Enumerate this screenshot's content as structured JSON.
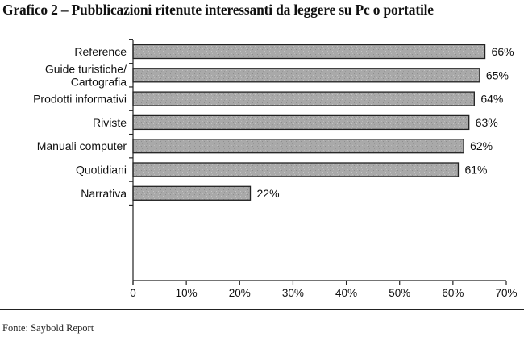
{
  "title": "Grafico 2 – Pubblicazioni ritenute interessanti da leggere su Pc o portatile",
  "source": "Fonte: Saybold Report",
  "colors": {
    "bar_fill": "#a9a9a9",
    "bar_stroke": "#222222",
    "axis": "#222222",
    "text": "#111111"
  },
  "chart_data": {
    "type": "bar",
    "orientation": "horizontal",
    "title": "Grafico 2 – Pubblicazioni ritenute interessanti da leggere su Pc o portatile",
    "categories": [
      [
        "Reference"
      ],
      [
        "Guide turistiche/",
        "Cartografia"
      ],
      [
        "Prodotti informativi"
      ],
      [
        "Riviste"
      ],
      [
        "Manuali computer"
      ],
      [
        "Quotidiani"
      ],
      [
        "Narrativa"
      ]
    ],
    "values": [
      66,
      65,
      64,
      63,
      62,
      61,
      22
    ],
    "value_labels": [
      "66%",
      "65%",
      "64%",
      "63%",
      "62%",
      "61%",
      "22%"
    ],
    "xlim": [
      0,
      70
    ],
    "xticks": [
      0,
      10,
      20,
      30,
      40,
      50,
      60,
      70
    ],
    "xtick_labels": [
      "0",
      "10%",
      "20%",
      "30%",
      "40%",
      "50%",
      "60%",
      "70%"
    ],
    "xlabel": "",
    "ylabel": "",
    "grid": false,
    "legend": false
  }
}
